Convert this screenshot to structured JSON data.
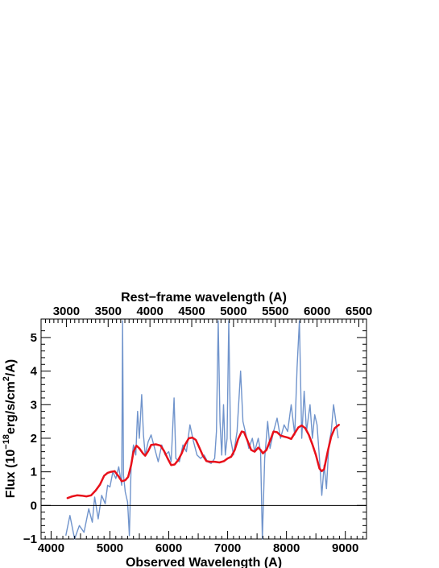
{
  "chart_data": {
    "type": "line",
    "title": "",
    "xlabel": "Observed Wavelength (A)",
    "x2label": "Rest−frame wavelength (A)",
    "ylabel_prefix": "Flux (10",
    "ylabel_exp1": "−18",
    "ylabel_mid": "erg/s/cm",
    "ylabel_exp2": "2",
    "ylabel_suffix": "/A)",
    "xlim": [
      3830,
      9360
    ],
    "ylim": [
      -1,
      5.55
    ],
    "x_ticks": [
      4000,
      5000,
      6000,
      7000,
      8000,
      9000
    ],
    "x_tick_labels": [
      "4000",
      "5000",
      "6000",
      "7000",
      "8000",
      "9000"
    ],
    "y_ticks": [
      -1,
      0,
      1,
      2,
      3,
      4,
      5
    ],
    "y_tick_labels": [
      "−1",
      "0",
      "1",
      "2",
      "3",
      "4",
      "5"
    ],
    "top_ticks_rest": [
      3000,
      3500,
      4000,
      4500,
      5000,
      5500,
      6000,
      6500
    ],
    "top_tick_labels": [
      "3000",
      "3500",
      "4000",
      "4500",
      "5000",
      "5500",
      "6000",
      "6500"
    ],
    "redshift": 0.42,
    "zero_line": 0,
    "colors": {
      "observed": "#7094cc",
      "model": "#e8101a",
      "axes": "#000000"
    },
    "series": [
      {
        "values": [
          [
            4250,
            -0.9
          ],
          [
            4320,
            -0.3
          ],
          [
            4400,
            -1.0
          ],
          [
            4480,
            -0.6
          ],
          [
            4560,
            -0.8
          ],
          [
            4640,
            -0.1
          ],
          [
            4700,
            -0.5
          ],
          [
            4740,
            0.25
          ],
          [
            4800,
            -0.4
          ],
          [
            4860,
            0.3
          ],
          [
            4920,
            0.05
          ],
          [
            4960,
            0.6
          ],
          [
            5000,
            0.55
          ],
          [
            5050,
            1.0
          ],
          [
            5100,
            0.8
          ],
          [
            5150,
            1.15
          ],
          [
            5200,
            0.6
          ],
          [
            5215,
            5.5
          ],
          [
            5230,
            0.9
          ],
          [
            5260,
            0.4
          ],
          [
            5300,
            0.1
          ],
          [
            5330,
            -0.9
          ],
          [
            5360,
            1.2
          ],
          [
            5400,
            1.8
          ],
          [
            5440,
            1.5
          ],
          [
            5470,
            2.8
          ],
          [
            5500,
            2.0
          ],
          [
            5540,
            3.3
          ],
          [
            5570,
            2.1
          ],
          [
            5600,
            1.5
          ],
          [
            5650,
            1.9
          ],
          [
            5700,
            2.1
          ],
          [
            5760,
            1.7
          ],
          [
            5820,
            1.3
          ],
          [
            5880,
            1.8
          ],
          [
            5940,
            1.5
          ],
          [
            6000,
            1.6
          ],
          [
            6040,
            1.3
          ],
          [
            6090,
            3.2
          ],
          [
            6120,
            1.4
          ],
          [
            6180,
            1.3
          ],
          [
            6240,
            1.8
          ],
          [
            6300,
            1.6
          ],
          [
            6360,
            2.4
          ],
          [
            6420,
            1.9
          ],
          [
            6480,
            1.5
          ],
          [
            6540,
            1.4
          ],
          [
            6600,
            1.5
          ],
          [
            6660,
            1.3
          ],
          [
            6720,
            1.25
          ],
          [
            6780,
            1.4
          ],
          [
            6810,
            2.2
          ],
          [
            6840,
            5.5
          ],
          [
            6870,
            2.5
          ],
          [
            6900,
            1.5
          ],
          [
            6930,
            3.0
          ],
          [
            6960,
            1.5
          ],
          [
            6990,
            2.0
          ],
          [
            7020,
            5.5
          ],
          [
            7050,
            2.0
          ],
          [
            7100,
            1.5
          ],
          [
            7160,
            2.2
          ],
          [
            7220,
            4.0
          ],
          [
            7260,
            2.5
          ],
          [
            7300,
            2.2
          ],
          [
            7360,
            1.7
          ],
          [
            7420,
            2.0
          ],
          [
            7460,
            1.6
          ],
          [
            7520,
            2.0
          ],
          [
            7560,
            1.6
          ],
          [
            7590,
            -1.0
          ],
          [
            7630,
            1.4
          ],
          [
            7680,
            2.5
          ],
          [
            7720,
            1.7
          ],
          [
            7780,
            2.2
          ],
          [
            7840,
            2.6
          ],
          [
            7900,
            2.0
          ],
          [
            7960,
            2.4
          ],
          [
            8020,
            2.2
          ],
          [
            8080,
            3.0
          ],
          [
            8140,
            2.1
          ],
          [
            8180,
            4.1
          ],
          [
            8220,
            5.5
          ],
          [
            8260,
            2.0
          ],
          [
            8300,
            3.4
          ],
          [
            8340,
            2.2
          ],
          [
            8400,
            3.0
          ],
          [
            8440,
            2.0
          ],
          [
            8480,
            2.7
          ],
          [
            8520,
            2.4
          ],
          [
            8560,
            1.4
          ],
          [
            8600,
            0.3
          ],
          [
            8640,
            1.2
          ],
          [
            8680,
            0.5
          ],
          [
            8720,
            1.8
          ],
          [
            8760,
            2.2
          ],
          [
            8800,
            3.0
          ],
          [
            8840,
            2.5
          ],
          [
            8880,
            2.0
          ]
        ]
      },
      {
        "values": [
          [
            4280,
            0.22
          ],
          [
            4360,
            0.27
          ],
          [
            4440,
            0.3
          ],
          [
            4520,
            0.29
          ],
          [
            4600,
            0.27
          ],
          [
            4680,
            0.3
          ],
          [
            4760,
            0.45
          ],
          [
            4830,
            0.62
          ],
          [
            4900,
            0.88
          ],
          [
            4960,
            0.97
          ],
          [
            5020,
            1.0
          ],
          [
            5080,
            1.02
          ],
          [
            5140,
            0.88
          ],
          [
            5200,
            0.72
          ],
          [
            5260,
            0.75
          ],
          [
            5310,
            0.85
          ],
          [
            5360,
            1.2
          ],
          [
            5400,
            1.6
          ],
          [
            5450,
            1.78
          ],
          [
            5500,
            1.7
          ],
          [
            5560,
            1.55
          ],
          [
            5600,
            1.48
          ],
          [
            5650,
            1.62
          ],
          [
            5700,
            1.8
          ],
          [
            5780,
            1.82
          ],
          [
            5860,
            1.78
          ],
          [
            5920,
            1.62
          ],
          [
            5980,
            1.4
          ],
          [
            6040,
            1.2
          ],
          [
            6100,
            1.22
          ],
          [
            6160,
            1.35
          ],
          [
            6220,
            1.55
          ],
          [
            6280,
            1.82
          ],
          [
            6340,
            2.0
          ],
          [
            6400,
            2.02
          ],
          [
            6460,
            1.95
          ],
          [
            6520,
            1.72
          ],
          [
            6580,
            1.48
          ],
          [
            6640,
            1.32
          ],
          [
            6700,
            1.3
          ],
          [
            6780,
            1.3
          ],
          [
            6860,
            1.28
          ],
          [
            6940,
            1.32
          ],
          [
            7000,
            1.4
          ],
          [
            7060,
            1.45
          ],
          [
            7120,
            1.65
          ],
          [
            7180,
            1.98
          ],
          [
            7240,
            2.2
          ],
          [
            7280,
            2.18
          ],
          [
            7340,
            1.92
          ],
          [
            7400,
            1.65
          ],
          [
            7460,
            1.6
          ],
          [
            7520,
            1.72
          ],
          [
            7560,
            1.65
          ],
          [
            7600,
            1.55
          ],
          [
            7660,
            1.65
          ],
          [
            7720,
            1.92
          ],
          [
            7780,
            2.2
          ],
          [
            7840,
            2.18
          ],
          [
            7900,
            2.08
          ],
          [
            7960,
            2.05
          ],
          [
            8020,
            2.02
          ],
          [
            8080,
            1.98
          ],
          [
            8140,
            2.15
          ],
          [
            8200,
            2.32
          ],
          [
            8260,
            2.38
          ],
          [
            8320,
            2.3
          ],
          [
            8380,
            2.1
          ],
          [
            8440,
            1.82
          ],
          [
            8500,
            1.5
          ],
          [
            8560,
            1.1
          ],
          [
            8600,
            1.02
          ],
          [
            8640,
            1.08
          ],
          [
            8700,
            1.6
          ],
          [
            8760,
            2.05
          ],
          [
            8820,
            2.3
          ],
          [
            8890,
            2.4
          ]
        ]
      }
    ]
  }
}
